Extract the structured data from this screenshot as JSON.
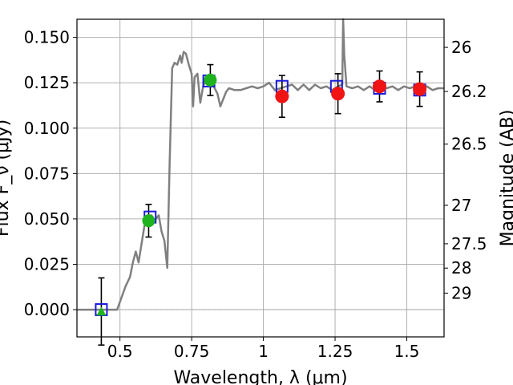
{
  "chart_data": {
    "type": "scatter",
    "xlabel": "Wavelength, λ (μm)",
    "ylabel_left": "Flux F_ν (μJy)",
    "ylabel_right": "Magnitude (AB)",
    "xlim": [
      0.35,
      1.63
    ],
    "ylim": [
      -0.015,
      0.16
    ],
    "grid": true,
    "x_ticks": [
      0.5,
      0.75,
      1.0,
      1.25,
      1.5
    ],
    "x_tick_labels": [
      "0.5",
      "0.75",
      "1",
      "1.25",
      "1.5"
    ],
    "y_ticks": [
      0.0,
      0.025,
      0.05,
      0.075,
      0.1,
      0.125,
      0.15
    ],
    "y_tick_labels": [
      "0.000",
      "0.025",
      "0.050",
      "0.075",
      "0.100",
      "0.125",
      "0.150"
    ],
    "right_ticks": [
      {
        "label": "26",
        "flux": 0.1445
      },
      {
        "label": "26.2",
        "flux": 0.1202
      },
      {
        "label": "26.5",
        "flux": 0.0912
      },
      {
        "label": "27",
        "flux": 0.0575
      },
      {
        "label": "27.5",
        "flux": 0.0363
      },
      {
        "label": "28",
        "flux": 0.0229
      },
      {
        "label": "29",
        "flux": 0.0091
      }
    ],
    "colors": {
      "model": "#808080",
      "squares": "#1a1ad9",
      "green": "#1fb31f",
      "red": "#f01414",
      "errorbar": "#000000",
      "grid": "#b0b0b0"
    },
    "model_spectrum": [
      [
        0.35,
        0.0
      ],
      [
        0.44,
        0.0
      ],
      [
        0.49,
        0.0
      ],
      [
        0.52,
        0.013
      ],
      [
        0.535,
        0.018
      ],
      [
        0.545,
        0.026
      ],
      [
        0.555,
        0.032
      ],
      [
        0.565,
        0.026
      ],
      [
        0.575,
        0.036
      ],
      [
        0.585,
        0.046
      ],
      [
        0.595,
        0.05
      ],
      [
        0.61,
        0.052
      ],
      [
        0.62,
        0.049
      ],
      [
        0.635,
        0.052
      ],
      [
        0.645,
        0.043
      ],
      [
        0.655,
        0.038
      ],
      [
        0.665,
        0.023
      ],
      [
        0.673,
        0.08
      ],
      [
        0.682,
        0.133
      ],
      [
        0.69,
        0.136
      ],
      [
        0.7,
        0.135
      ],
      [
        0.71,
        0.14
      ],
      [
        0.715,
        0.136
      ],
      [
        0.722,
        0.142
      ],
      [
        0.73,
        0.141
      ],
      [
        0.74,
        0.135
      ],
      [
        0.75,
        0.13
      ],
      [
        0.755,
        0.112
      ],
      [
        0.76,
        0.128
      ],
      [
        0.77,
        0.13
      ],
      [
        0.78,
        0.114
      ],
      [
        0.79,
        0.123
      ],
      [
        0.8,
        0.127
      ],
      [
        0.82,
        0.126
      ],
      [
        0.83,
        0.122
      ],
      [
        0.84,
        0.119
      ],
      [
        0.85,
        0.112
      ],
      [
        0.86,
        0.116
      ],
      [
        0.87,
        0.12
      ],
      [
        0.88,
        0.122
      ],
      [
        0.9,
        0.121
      ],
      [
        0.92,
        0.121
      ],
      [
        0.94,
        0.122
      ],
      [
        0.96,
        0.123
      ],
      [
        0.98,
        0.122
      ],
      [
        1.0,
        0.123
      ],
      [
        1.02,
        0.125
      ],
      [
        1.04,
        0.121
      ],
      [
        1.06,
        0.122
      ],
      [
        1.08,
        0.123
      ],
      [
        1.1,
        0.124
      ],
      [
        1.12,
        0.121
      ],
      [
        1.14,
        0.124
      ],
      [
        1.16,
        0.121
      ],
      [
        1.18,
        0.124
      ],
      [
        1.2,
        0.122
      ],
      [
        1.22,
        0.123
      ],
      [
        1.24,
        0.121
      ],
      [
        1.26,
        0.123
      ],
      [
        1.275,
        0.124
      ],
      [
        1.278,
        0.16
      ],
      [
        1.282,
        0.14
      ],
      [
        1.29,
        0.123
      ],
      [
        1.31,
        0.122
      ],
      [
        1.33,
        0.123
      ],
      [
        1.35,
        0.121
      ],
      [
        1.37,
        0.123
      ],
      [
        1.39,
        0.121
      ],
      [
        1.41,
        0.123
      ],
      [
        1.43,
        0.122
      ],
      [
        1.45,
        0.123
      ],
      [
        1.47,
        0.121
      ],
      [
        1.49,
        0.123
      ],
      [
        1.51,
        0.122
      ],
      [
        1.53,
        0.123
      ],
      [
        1.55,
        0.122
      ],
      [
        1.57,
        0.123
      ],
      [
        1.59,
        0.121
      ],
      [
        1.61,
        0.122
      ],
      [
        1.63,
        0.122
      ]
    ],
    "squares": [
      {
        "x": 0.435,
        "y": 0.0
      },
      {
        "x": 0.605,
        "y": 0.051
      },
      {
        "x": 0.81,
        "y": 0.126
      },
      {
        "x": 1.065,
        "y": 0.123
      },
      {
        "x": 1.255,
        "y": 0.123
      },
      {
        "x": 1.405,
        "y": 0.122
      },
      {
        "x": 1.545,
        "y": 0.121
      }
    ],
    "green_points": [
      {
        "x": 0.435,
        "y": -0.001,
        "yerr": 0.0185,
        "marker": "triangle"
      },
      {
        "x": 0.6,
        "y": 0.049,
        "yerr": 0.009,
        "marker": "circle"
      },
      {
        "x": 0.815,
        "y": 0.1265,
        "yerr": 0.0085,
        "marker": "circle"
      }
    ],
    "red_points": [
      {
        "x": 1.065,
        "y": 0.1175,
        "yerr": 0.0115
      },
      {
        "x": 1.26,
        "y": 0.119,
        "yerr": 0.011
      },
      {
        "x": 1.405,
        "y": 0.123,
        "yerr": 0.0085
      },
      {
        "x": 1.545,
        "y": 0.1215,
        "yerr": 0.0095
      }
    ]
  }
}
